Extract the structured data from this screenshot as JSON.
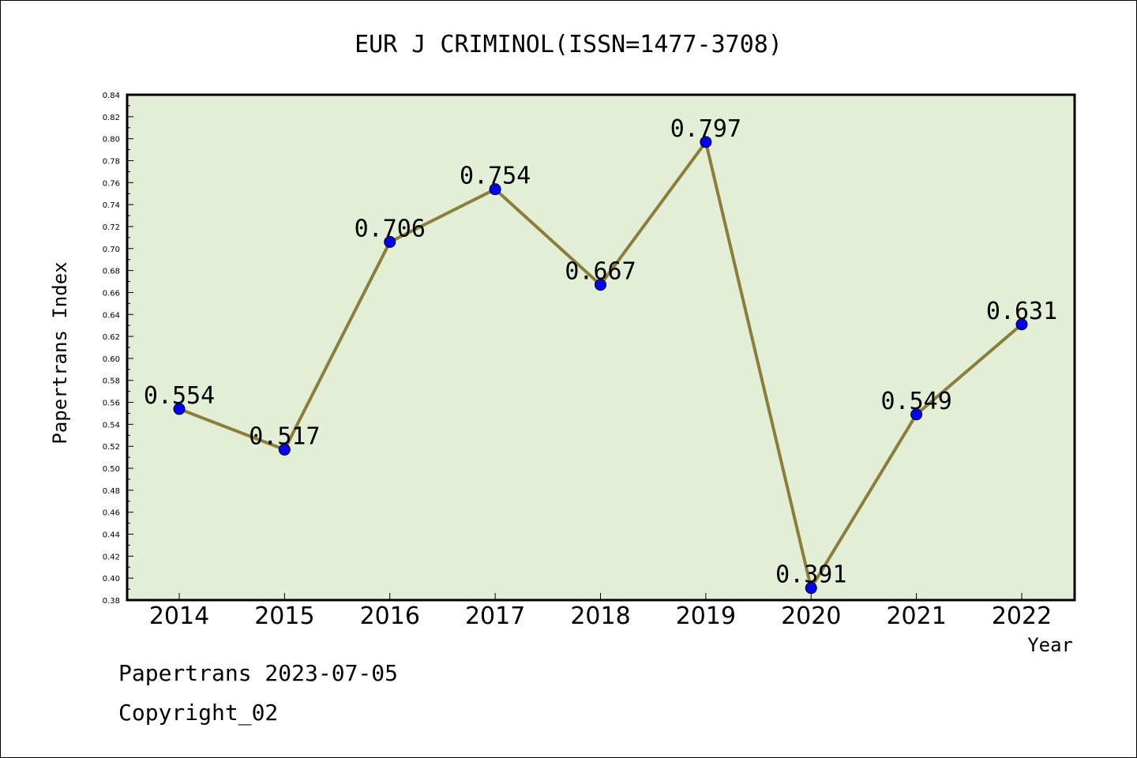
{
  "chart_data": {
    "type": "line",
    "title": "EUR J CRIMINOL(ISSN=1477-3708)",
    "xlabel": "Year",
    "ylabel": "Papertrans Index",
    "categories": [
      "2014",
      "2015",
      "2016",
      "2017",
      "2018",
      "2019",
      "2020",
      "2021",
      "2022"
    ],
    "series": [
      {
        "values": [
          0.554,
          0.517,
          0.706,
          0.754,
          0.667,
          0.797,
          0.391,
          0.549,
          0.631
        ],
        "data_labels": [
          "0.554",
          "0.517",
          "0.706",
          "0.754",
          "0.667",
          "0.797",
          "0.391",
          "0.549",
          "0.631"
        ]
      }
    ],
    "ylim": [
      0.38,
      0.84
    ],
    "yticks": [
      "0.38",
      "0.40",
      "0.42",
      "0.44",
      "0.46",
      "0.48",
      "0.50",
      "0.52",
      "0.54",
      "0.56",
      "0.58",
      "0.60",
      "0.62",
      "0.64",
      "0.66",
      "0.68",
      "0.70",
      "0.72",
      "0.74",
      "0.76",
      "0.78",
      "0.80",
      "0.82",
      "0.84"
    ],
    "grid": false,
    "legend": "none",
    "colors": {
      "plot_background": "#e2efd6",
      "line": "#8b7d3a",
      "marker": "#0000ff"
    }
  },
  "footer": {
    "line1": "Papertrans 2023-07-05",
    "line2": "Copyright_02"
  }
}
